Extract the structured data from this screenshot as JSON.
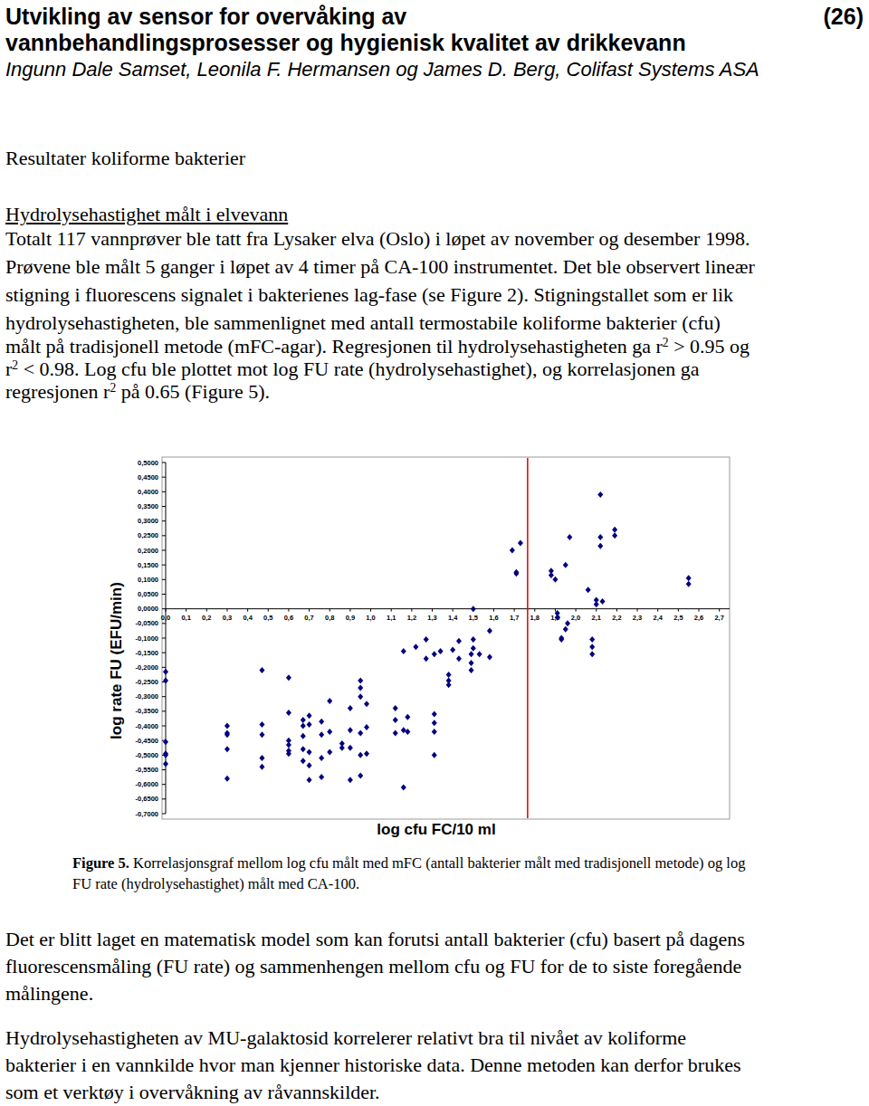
{
  "header": {
    "title_lines": [
      "Utvikling av sensor for overvåking av",
      "vannbehandlingsprosesser og hygienisk kvalitet av drikkevann"
    ],
    "page_number": "(26)",
    "authors": "Ingunn Dale Samset, Leonila F. Hermansen og James D. Berg, Colifast Systems ASA"
  },
  "section_heading": "Resultater koliforme bakterier",
  "subheading": "Hydrolysehastighet målt i elvevann",
  "paragraphs": [
    {
      "lines": [
        [
          "Totalt 117 vannprøver ble tatt fra Lysaker elva (Oslo) i løpet av november og desember 1998."
        ],
        [
          "Prøvene ble målt 5 ganger i løpet av 4 timer på CA-100 instrumentet. Det ble observert lineær"
        ],
        [
          "stigning i fluorescens signalet i bakterienes lag-fase (se Figure 2). Stigningstallet som er lik"
        ],
        [
          "hydrolysehastigheten, ble sammenlignet med antall termostabile koliforme bakterier (cfu)"
        ],
        [
          "målt på tradisjonell metode (mFC-agar). Regresjonen til hydrolysehastigheten ga r",
          {
            "sup": "2"
          },
          " > 0.95 og"
        ],
        [
          "r",
          {
            "sup": "2"
          },
          " < 0.98. Log cfu ble plottet mot log FU rate (hydrolysehastighet), og korrelasjonen ga"
        ],
        [
          "regresjonen r",
          {
            "sup": "2"
          },
          " på 0.65 (Figure 5)."
        ]
      ]
    },
    {
      "lines": [
        [
          "Det er blitt laget en matematisk model som kan forutsi antall bakterier (cfu) basert på dagens"
        ],
        [
          "fluorescensmåling (FU rate) og sammenhengen mellom cfu og FU for de to siste foregående"
        ],
        [
          "målingene."
        ]
      ]
    },
    {
      "lines": [
        [
          "Hydrolysehastigheten av MU-galaktosid korrelerer relativt bra til nivået av koliforme"
        ],
        [
          "bakterier i en vannkilde hvor man kjenner historiske data. Denne metoden kan derfor brukes"
        ],
        [
          "som et verktøy i overvåkning av råvannskilder."
        ]
      ]
    }
  ],
  "caption": {
    "lines": [
      [
        {
          "bold": "Figure 5."
        },
        " Korrelasjonsgraf mellom log cfu målt med mFC (antall bakterier målt med tradisjonell metode) og log"
      ],
      [
        "FU rate (hydrolysehastighet) målt med CA-100."
      ]
    ]
  },
  "chart_data": {
    "type": "scatter",
    "x_label": "log cfu FC/10 ml",
    "y_label": "log rate FU (EFU/min)",
    "xlim": [
      0,
      2.75
    ],
    "ylim": [
      -0.7,
      0.5
    ],
    "grid": false,
    "xticks": [
      {
        "value": 0,
        "label": "0,0"
      },
      {
        "value": 0.1,
        "label": "0,1"
      },
      {
        "value": 0.2,
        "label": "0,2"
      },
      {
        "value": 0.3,
        "label": "0,3"
      },
      {
        "value": 0.4,
        "label": "0,4"
      },
      {
        "value": 0.5,
        "label": "0,5"
      },
      {
        "value": 0.6,
        "label": "0,6"
      },
      {
        "value": 0.7,
        "label": "0,7"
      },
      {
        "value": 0.8,
        "label": "0,8"
      },
      {
        "value": 0.9,
        "label": "0,9"
      },
      {
        "value": 1.0,
        "label": "1,0"
      },
      {
        "value": 1.1,
        "label": "1,1"
      },
      {
        "value": 1.2,
        "label": "1,2"
      },
      {
        "value": 1.3,
        "label": "1,3"
      },
      {
        "value": 1.4,
        "label": "1,4"
      },
      {
        "value": 1.5,
        "label": "1,5"
      },
      {
        "value": 1.6,
        "label": "1,6"
      },
      {
        "value": 1.7,
        "label": "1,7"
      },
      {
        "value": 1.8,
        "label": "1,8"
      },
      {
        "value": 1.9,
        "label": "1,9"
      },
      {
        "value": 2.0,
        "label": "2,0"
      },
      {
        "value": 2.1,
        "label": "2,1"
      },
      {
        "value": 2.2,
        "label": "2,2"
      },
      {
        "value": 2.3,
        "label": "2,3"
      },
      {
        "value": 2.4,
        "label": "2,4"
      },
      {
        "value": 2.5,
        "label": "2,5"
      },
      {
        "value": 2.6,
        "label": "2,6"
      },
      {
        "value": 2.7,
        "label": "2,7"
      }
    ],
    "yticks": [
      {
        "value": -0.7,
        "label": "-0,7000"
      },
      {
        "value": -0.65,
        "label": "-0,6500"
      },
      {
        "value": -0.6,
        "label": "-0,6000"
      },
      {
        "value": -0.55,
        "label": "-0,5500"
      },
      {
        "value": -0.5,
        "label": "-0,5000"
      },
      {
        "value": -0.45,
        "label": "-0,4500"
      },
      {
        "value": -0.4,
        "label": "-0,4000"
      },
      {
        "value": -0.35,
        "label": "-0,3500"
      },
      {
        "value": -0.3,
        "label": "-0,3000"
      },
      {
        "value": -0.25,
        "label": "-0,2500"
      },
      {
        "value": -0.2,
        "label": "-0,2000"
      },
      {
        "value": -0.15,
        "label": "-0,1500"
      },
      {
        "value": -0.1,
        "label": "-0,1000"
      },
      {
        "value": -0.05,
        "label": "-0,0500"
      },
      {
        "value": 0,
        "label": "0,0000"
      },
      {
        "value": 0.05,
        "label": "0,0500"
      },
      {
        "value": 0.1,
        "label": "0,1000"
      },
      {
        "value": 0.15,
        "label": "0,1500"
      },
      {
        "value": 0.2,
        "label": "0,2000"
      },
      {
        "value": 0.25,
        "label": "0,2500"
      },
      {
        "value": 0.3,
        "label": "0,3000"
      },
      {
        "value": 0.35,
        "label": "0,3500"
      },
      {
        "value": 0.4,
        "label": "0,4000"
      },
      {
        "value": 0.45,
        "label": "0,4500"
      },
      {
        "value": 0.5,
        "label": "0,5000"
      }
    ],
    "series": [
      {
        "color": "#000080",
        "marker": "diamond",
        "x": [
          0,
          0,
          0,
          0,
          0,
          0,
          0.3,
          0.3,
          0.3,
          0.3,
          0.3,
          0.47,
          0.47,
          0.47,
          0.47,
          0.47,
          0.6,
          0.6,
          0.6,
          0.6,
          0.6,
          0.6,
          0.67,
          0.67,
          0.67,
          0.67,
          0.67,
          0.7,
          0.7,
          0.7,
          0.7,
          0.7,
          0.76,
          0.76,
          0.76,
          0.76,
          0.8,
          0.8,
          0.8,
          0.86,
          0.86,
          0.9,
          0.9,
          0.9,
          0.9,
          0.95,
          0.95,
          0.95,
          0.95,
          0.95,
          0.95,
          0.98,
          0.98,
          0.98,
          1.12,
          1.12,
          1.12,
          1.16,
          1.16,
          1.16,
          1.18,
          1.18,
          1.22,
          1.27,
          1.27,
          1.31,
          1.31,
          1.31,
          1.31,
          1.31,
          1.34,
          1.38,
          1.38,
          1.38,
          1.4,
          1.43,
          1.43,
          1.49,
          1.49,
          1.49,
          1.5,
          1.5,
          1.5,
          1.53,
          1.58,
          1.58,
          1.69,
          1.71,
          1.71,
          1.73,
          1.88,
          1.88,
          1.9,
          1.91,
          1.91,
          1.93,
          1.93,
          1.95,
          1.95,
          1.96,
          1.97,
          2.06,
          2.08,
          2.08,
          2.08,
          2.1,
          2.1,
          2.12,
          2.12,
          2.12,
          2.13,
          2.19,
          2.19,
          2.55,
          2.55
        ],
        "values": [
          -0.215,
          -0.245,
          -0.455,
          -0.495,
          -0.5,
          -0.53,
          -0.4,
          -0.425,
          -0.43,
          -0.48,
          -0.58,
          -0.21,
          -0.395,
          -0.43,
          -0.51,
          -0.54,
          -0.235,
          -0.355,
          -0.45,
          -0.465,
          -0.485,
          -0.495,
          -0.38,
          -0.4,
          -0.435,
          -0.48,
          -0.52,
          -0.365,
          -0.395,
          -0.49,
          -0.535,
          -0.585,
          -0.385,
          -0.43,
          -0.51,
          -0.575,
          -0.315,
          -0.42,
          -0.49,
          -0.46,
          -0.475,
          -0.34,
          -0.415,
          -0.475,
          -0.585,
          -0.245,
          -0.27,
          -0.3,
          -0.425,
          -0.5,
          -0.57,
          -0.325,
          -0.405,
          -0.495,
          -0.34,
          -0.38,
          -0.425,
          -0.145,
          -0.415,
          -0.61,
          -0.37,
          -0.42,
          -0.13,
          -0.105,
          -0.17,
          -0.155,
          -0.36,
          -0.39,
          -0.42,
          -0.5,
          -0.145,
          -0.225,
          -0.245,
          -0.26,
          -0.14,
          -0.11,
          -0.17,
          -0.155,
          -0.185,
          -0.21,
          0,
          -0.105,
          -0.135,
          -0.155,
          -0.075,
          -0.165,
          0.2,
          0.125,
          0.12,
          0.225,
          0.13,
          0.115,
          0.1,
          -0.015,
          -0.03,
          -0.1,
          -0.105,
          -0.07,
          0.15,
          -0.05,
          0.245,
          0.065,
          -0.105,
          -0.13,
          -0.155,
          0.03,
          0.015,
          0.39,
          0.245,
          0.215,
          0.025,
          0.27,
          0.25,
          0.105,
          0.085
        ]
      }
    ],
    "reference_lines": [
      {
        "x": 1.765,
        "color": "#e00000"
      }
    ]
  }
}
